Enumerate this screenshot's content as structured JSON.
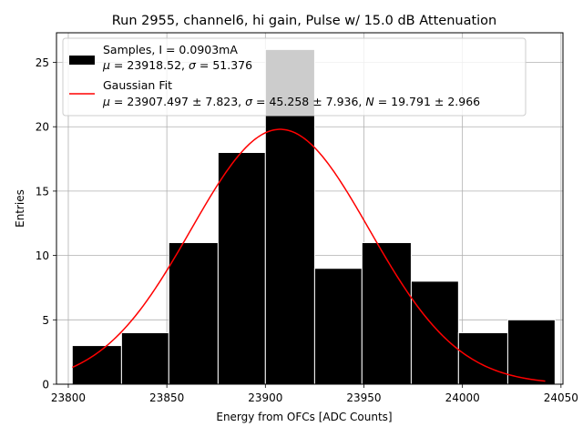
{
  "chart_data": {
    "type": "bar",
    "title": "Run 2955, channel6, hi gain, Pulse w/ 15.0 dB Attenuation",
    "xlabel": "Energy from OFCs [ADC Counts]",
    "ylabel": "Entries",
    "xlim": [
      23794,
      24051
    ],
    "ylim": [
      0,
      27.3
    ],
    "grid": true,
    "xticks": [
      23800,
      23850,
      23900,
      23950,
      24000,
      24050
    ],
    "yticks": [
      0,
      5,
      10,
      15,
      20,
      25
    ],
    "bin_edges": [
      23802,
      23827,
      23851,
      23876,
      23900,
      23925,
      23949,
      23974,
      23998,
      24023,
      24047
    ],
    "counts": [
      3,
      4,
      11,
      18,
      26,
      9,
      11,
      8,
      4,
      5
    ],
    "fit": {
      "mu": 23907.497,
      "sigma": 45.258,
      "N": 19.791,
      "amplitude": 19.8,
      "x_start": 23802,
      "x_end": 24042
    },
    "legend": {
      "position": "top-left",
      "entries": [
        {
          "label": "Samples, I = 0.0903mA",
          "sublabel_italic_mu": "μ",
          "sublabel_mid": " = 23918.52, ",
          "sublabel_italic_sigma": "σ",
          "sublabel_end": " = 51.376",
          "color": "#000000",
          "kind": "patch"
        },
        {
          "label": "Gaussian Fit",
          "sublabel_italic_mu": "μ",
          "sublabel_mid": " = 23907.497 ± 7.823, ",
          "sublabel_italic_sigma": "σ",
          "sublabel_mid2": " = 45.258 ± 7.936, ",
          "sublabel_italic_n": "N",
          "sublabel_end": " = 19.791 ± 2.966",
          "color": "#ff0000",
          "kind": "line"
        }
      ]
    }
  },
  "colors": {
    "bars": "#000000",
    "bar_edge": "#ffffff",
    "fit_line": "#ff0000",
    "grid": "#b0b0b0"
  }
}
